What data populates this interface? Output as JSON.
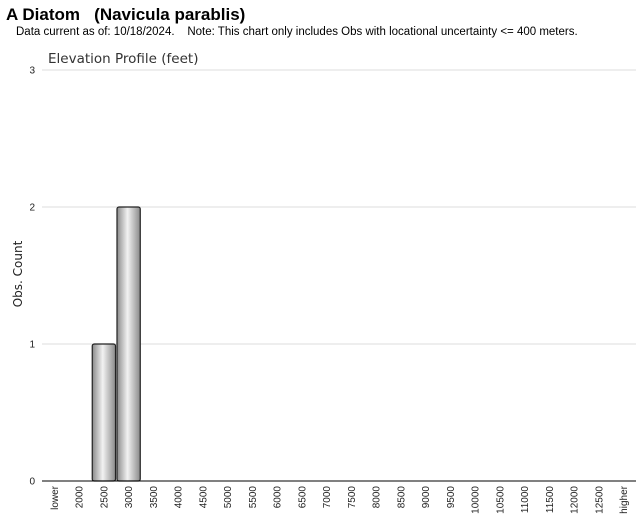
{
  "header": {
    "title": "A Diatom   (Navicula parablis)",
    "note": "Data current as of: 10/18/2024.    Note: This chart only includes Obs with locational uncertainty <= 400 meters."
  },
  "colors": {
    "bar_fill_light": "#f2f2f2",
    "bar_fill_dark": "#8a8a8a",
    "bar_stroke": "#222222",
    "grid": "#dddddd",
    "axis": "#000000"
  },
  "chart_data": {
    "type": "bar",
    "title": "Elevation Profile (feet)",
    "xlabel": "",
    "ylabel": "Obs. Count",
    "ylim": [
      0,
      3
    ],
    "yticks": [
      "0",
      "1",
      "2",
      "3"
    ],
    "grid": true,
    "legend": "none",
    "categories": [
      "lower",
      "2000",
      "2500",
      "3000",
      "3500",
      "4000",
      "4500",
      "5000",
      "5500",
      "6000",
      "6500",
      "7000",
      "7500",
      "8000",
      "8500",
      "9000",
      "9500",
      "10000",
      "10500",
      "11000",
      "11500",
      "12000",
      "12500",
      "higher"
    ],
    "values": [
      0,
      0,
      1,
      2,
      0,
      0,
      0,
      0,
      0,
      0,
      0,
      0,
      0,
      0,
      0,
      0,
      0,
      0,
      0,
      0,
      0,
      0,
      0,
      0
    ]
  }
}
